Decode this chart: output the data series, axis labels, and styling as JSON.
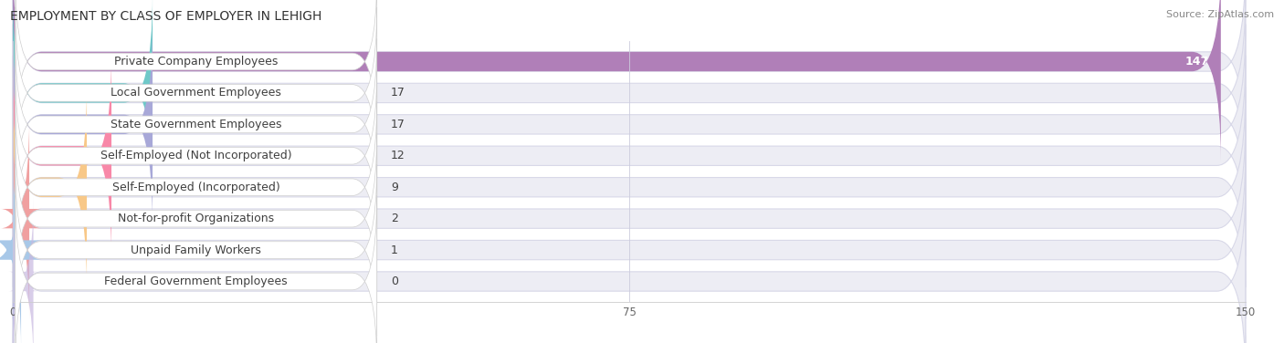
{
  "title": "EMPLOYMENT BY CLASS OF EMPLOYER IN LEHIGH",
  "source": "Source: ZipAtlas.com",
  "categories": [
    "Private Company Employees",
    "Local Government Employees",
    "State Government Employees",
    "Self-Employed (Not Incorporated)",
    "Self-Employed (Incorporated)",
    "Not-for-profit Organizations",
    "Unpaid Family Workers",
    "Federal Government Employees"
  ],
  "values": [
    147,
    17,
    17,
    12,
    9,
    2,
    1,
    0
  ],
  "bar_colors": [
    "#b07fb8",
    "#6ec8c8",
    "#a8a8d8",
    "#f888a8",
    "#f8c888",
    "#f0a0a0",
    "#a8c8e8",
    "#c8b8e0"
  ],
  "bar_bg_color": "#ededf4",
  "label_bg_color": "#ffffff",
  "background_color": "#ffffff",
  "xlim_max": 150,
  "xticks": [
    0,
    75,
    150
  ],
  "title_fontsize": 10,
  "label_fontsize": 9,
  "value_fontsize": 9,
  "source_fontsize": 8
}
